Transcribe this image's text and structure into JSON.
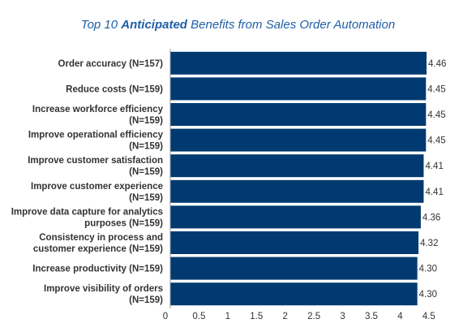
{
  "title": {
    "prefix": "Top 10 ",
    "emphasis": "Anticipated",
    "suffix": " Benefits from Sales Order Automation"
  },
  "chart_data": {
    "type": "bar",
    "orientation": "horizontal",
    "title": "Top 10 Anticipated Benefits from Sales Order Automation",
    "categories": [
      [
        "Order accuracy (N=157)"
      ],
      [
        "Reduce costs (N=159)"
      ],
      [
        "Increase workforce efficiency",
        "(N=159)"
      ],
      [
        "Improve operational efficiency",
        "(N=159)"
      ],
      [
        "Improve customer satisfaction",
        "(N=159)"
      ],
      [
        "Improve customer experience",
        "(N=159)"
      ],
      [
        "Improve data capture for analytics",
        "purposes (N=159)"
      ],
      [
        "Consistency in process and",
        "customer experience (N=159)"
      ],
      [
        "Increase productivity (N=159)"
      ],
      [
        "Improve visibility of orders",
        "(N=159)"
      ]
    ],
    "values": [
      4.46,
      4.45,
      4.45,
      4.45,
      4.41,
      4.41,
      4.36,
      4.32,
      4.3,
      4.3
    ],
    "value_labels": [
      "4.46",
      "4.45",
      "4.45",
      "4.45",
      "4.41",
      "4.41",
      "4.36",
      "4.32",
      "4.30",
      "4.30"
    ],
    "xlim": [
      0,
      4.5
    ],
    "xticks": [
      "0",
      "0.5",
      "1",
      "1.5",
      "2",
      "2.5",
      "3",
      "3.5",
      "4",
      "4.5"
    ],
    "xlabel": "",
    "ylabel": "",
    "grid": false,
    "legend": "none",
    "bar_color": "#003a70",
    "title_color": "#1f5fa8"
  }
}
